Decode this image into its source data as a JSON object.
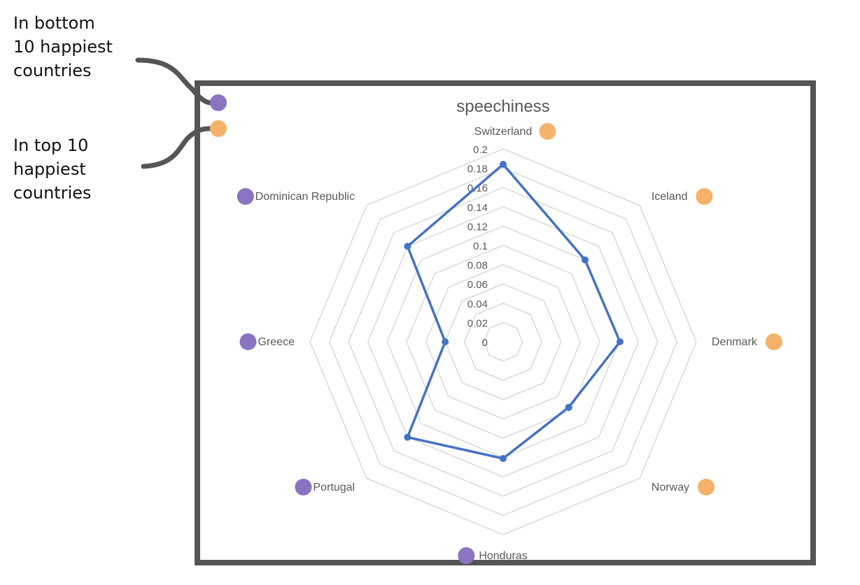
{
  "annotations": {
    "bottom_label": "In bottom\n10 happiest\ncountries",
    "top_label": "In top 10\nhappiest\ncountries"
  },
  "colors": {
    "bottom_marker": "#8a74c2",
    "top_marker": "#f5b26b",
    "series_line": "#4472c4",
    "grid": "#d9d9d9",
    "frame": "#555555",
    "connector": "#555555"
  },
  "chart_data": {
    "type": "radar",
    "title": "speechiness",
    "categories": [
      "Switzerland",
      "Iceland",
      "Denmark",
      "Norway",
      "Honduras",
      "Portugal",
      "Greece",
      "Dominican Republic"
    ],
    "groups": [
      "top",
      "top",
      "top",
      "top",
      "bottom",
      "bottom",
      "bottom",
      "bottom"
    ],
    "series": [
      {
        "values": [
          0.184,
          0.12,
          0.121,
          0.096,
          0.121,
          0.14,
          0.06,
          0.14
        ]
      }
    ],
    "rlim": [
      0,
      0.2
    ],
    "ticks": [
      "0",
      "0.02",
      "0.04",
      "0.06",
      "0.08",
      "0.1",
      "0.12",
      "0.14",
      "0.16",
      "0.18",
      "0.2"
    ],
    "grid": true
  }
}
